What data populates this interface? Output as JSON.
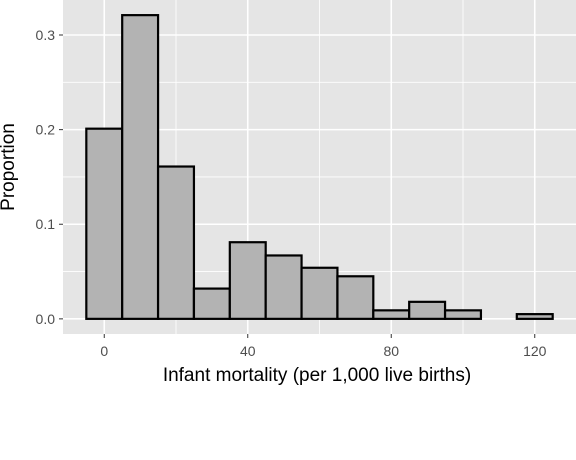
{
  "chart_data": {
    "type": "histogram",
    "title": "",
    "xlabel": "Infant mortality (per 1,000 live births)",
    "ylabel": "Proportion",
    "bin_width": 10,
    "bins": [
      {
        "x_start": -5,
        "x_end": 5,
        "value": 0.201
      },
      {
        "x_start": 5,
        "x_end": 15,
        "value": 0.321
      },
      {
        "x_start": 15,
        "x_end": 25,
        "value": 0.161
      },
      {
        "x_start": 25,
        "x_end": 35,
        "value": 0.032
      },
      {
        "x_start": 35,
        "x_end": 45,
        "value": 0.081
      },
      {
        "x_start": 45,
        "x_end": 55,
        "value": 0.067
      },
      {
        "x_start": 55,
        "x_end": 65,
        "value": 0.054
      },
      {
        "x_start": 65,
        "x_end": 75,
        "value": 0.045
      },
      {
        "x_start": 75,
        "x_end": 85,
        "value": 0.009
      },
      {
        "x_start": 85,
        "x_end": 95,
        "value": 0.018
      },
      {
        "x_start": 95,
        "x_end": 105,
        "value": 0.009
      },
      {
        "x_start": 105,
        "x_end": 115,
        "value": 0.0
      },
      {
        "x_start": 115,
        "x_end": 125,
        "value": 0.005
      }
    ],
    "xticks": [
      0,
      40,
      80,
      120
    ],
    "xtick_labels": [
      "0",
      "40",
      "80",
      "120"
    ],
    "yticks": [
      0.0,
      0.1,
      0.2,
      0.3
    ],
    "ytick_labels": [
      "0.0",
      "0.1",
      "0.2",
      "0.3"
    ],
    "xlim": [
      -11.5,
      131.5
    ],
    "ylim": [
      -0.016,
      0.337
    ],
    "grid": true,
    "colors": {
      "panel_background": "#e5e5e5",
      "gridline": "#ffffff",
      "bar_fill": "#b3b3b3",
      "bar_outline": "#000000",
      "tick_label": "#4d4d4d"
    }
  }
}
